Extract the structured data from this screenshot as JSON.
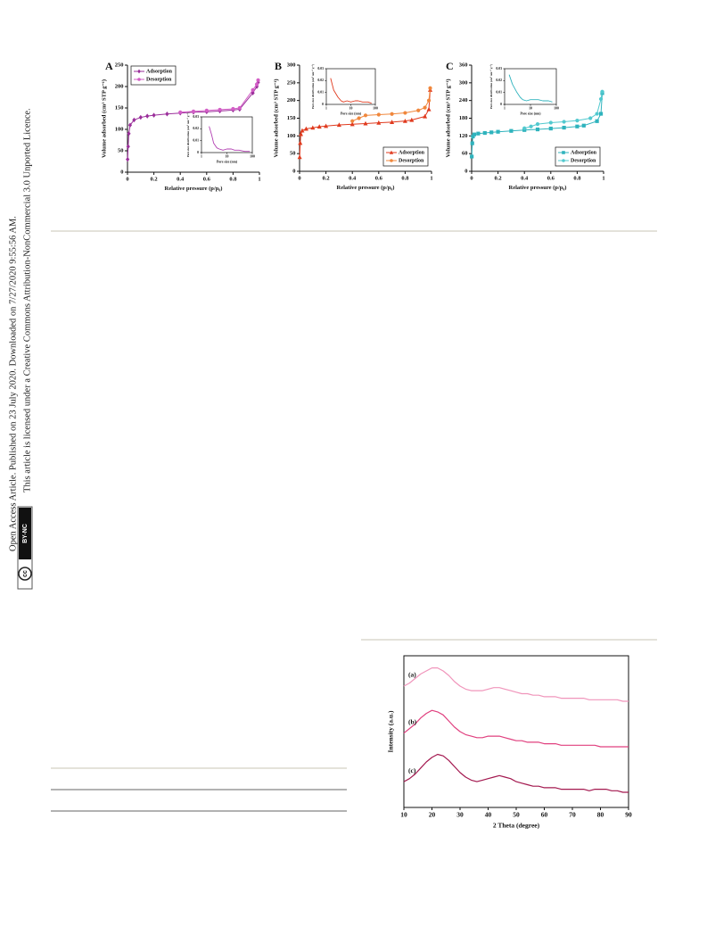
{
  "side_notice": {
    "line1": "Open Access Article. Published on 23 July 2020. Downloaded on 7/27/2020 9:55:56 AM.",
    "line2": "This article is licensed under a Creative Commons Attribution-NonCommercial 3.0 Unported Licence.",
    "badge_cc": "cc",
    "badge_text": "BY-NC"
  },
  "chart_data": [
    {
      "type": "line",
      "panel": "A",
      "xlabel": "Relative pressure  (p/p₀)",
      "ylabel": "Volume adsorbed (cm³ STP g⁻¹)",
      "xlim": [
        0,
        1
      ],
      "xticks": [
        0,
        0.2,
        0.4,
        0.6,
        0.8,
        1
      ],
      "ylim": [
        0,
        250
      ],
      "yticks": [
        0,
        50,
        100,
        150,
        200,
        250
      ],
      "legend": "upper left",
      "series": [
        {
          "name": "Adsorption",
          "color": "#9b2f9b",
          "marker": "diamond",
          "x": [
            0.001,
            0.005,
            0.01,
            0.02,
            0.05,
            0.1,
            0.15,
            0.2,
            0.3,
            0.4,
            0.5,
            0.6,
            0.7,
            0.8,
            0.85,
            0.95,
            0.98,
            0.99
          ],
          "values": [
            30,
            60,
            90,
            110,
            122,
            128,
            131,
            133,
            136,
            138,
            140,
            141,
            143,
            145,
            147,
            185,
            200,
            210
          ]
        },
        {
          "name": "Desorption",
          "color": "#d35ec6",
          "marker": "circle",
          "x": [
            0.99,
            0.98,
            0.95,
            0.85,
            0.8,
            0.7,
            0.6,
            0.5,
            0.4
          ],
          "values": [
            215,
            205,
            192,
            150,
            148,
            146,
            144,
            142,
            140
          ]
        }
      ],
      "inset": {
        "type": "line",
        "xlabel": "Pore size (nm)",
        "ylabel": "Pore size distribution (cm³ nm⁻¹ g⁻¹)",
        "xscale": "log",
        "xlim": [
          1,
          100
        ],
        "xticks": [
          1,
          10,
          100
        ],
        "ylim": [
          0,
          0.03
        ],
        "yticks": [
          0,
          0.01,
          0.02,
          0.03
        ],
        "frame": true,
        "series": [
          {
            "color": "#b23fb2",
            "x": [
              2,
              2.5,
              3,
              4,
              5,
              7,
              10,
              15,
              20,
              30,
              50,
              80
            ],
            "values": [
              0.022,
              0.015,
              0.008,
              0.004,
              0.003,
              0.002,
              0.003,
              0.003,
              0.002,
              0.002,
              0.001,
              0.001
            ]
          }
        ]
      }
    },
    {
      "type": "line",
      "panel": "B",
      "xlabel": "Relative pressure  (p/p₀)",
      "ylabel": "Volume adsorbed (cm³ STP g⁻¹)",
      "xlim": [
        0,
        1
      ],
      "xticks": [
        0,
        0.2,
        0.4,
        0.6,
        0.8,
        1
      ],
      "ylim": [
        0,
        300
      ],
      "yticks": [
        0,
        50,
        100,
        150,
        200,
        250,
        300
      ],
      "legend": "lower right",
      "series": [
        {
          "name": "Adsorption",
          "color": "#e03a1e",
          "marker": "triangle",
          "x": [
            0.001,
            0.005,
            0.01,
            0.02,
            0.05,
            0.1,
            0.15,
            0.2,
            0.3,
            0.4,
            0.5,
            0.6,
            0.7,
            0.8,
            0.85,
            0.95,
            0.98,
            0.99
          ],
          "values": [
            40,
            80,
            105,
            115,
            120,
            123,
            126,
            128,
            131,
            133,
            135,
            137,
            139,
            142,
            145,
            155,
            175,
            230
          ]
        },
        {
          "name": "Desorption",
          "color": "#f0873c",
          "marker": "circle",
          "x": [
            0.99,
            0.98,
            0.95,
            0.9,
            0.8,
            0.7,
            0.6,
            0.5,
            0.45,
            0.4
          ],
          "values": [
            235,
            200,
            180,
            172,
            165,
            162,
            160,
            158,
            150,
            142
          ]
        }
      ],
      "inset": {
        "type": "line",
        "xlabel": "Pore size (nm)",
        "ylabel": "Pore size distribution (cm³ nm⁻¹ g⁻¹)",
        "xscale": "log",
        "xlim": [
          1,
          100
        ],
        "xticks": [
          1,
          10,
          100
        ],
        "ylim": [
          0,
          0.03
        ],
        "yticks": [
          0,
          0.01,
          0.02,
          0.03
        ],
        "frame": true,
        "series": [
          {
            "color": "#e03a1e",
            "x": [
              1.5,
              2,
              3,
              4,
              5,
              7,
              10,
              15,
              20,
              30,
              50,
              70
            ],
            "values": [
              0.022,
              0.012,
              0.006,
              0.003,
              0.002,
              0.003,
              0.002,
              0.003,
              0.003,
              0.002,
              0.002,
              0.001
            ]
          }
        ]
      }
    },
    {
      "type": "line",
      "panel": "C",
      "xlabel": "Relative pressure  (p/p₀)",
      "ylabel": "Volume adsorbed (cm³ STP g⁻¹)",
      "xlim": [
        0,
        1
      ],
      "xticks": [
        0,
        0.2,
        0.4,
        0.6,
        0.8,
        1
      ],
      "ylim": [
        0,
        360
      ],
      "yticks": [
        0,
        60,
        120,
        180,
        240,
        300,
        360
      ],
      "legend": "lower right",
      "series": [
        {
          "name": "Adsorption",
          "color": "#2fb3bd",
          "marker": "square",
          "x": [
            0.001,
            0.005,
            0.01,
            0.02,
            0.05,
            0.1,
            0.15,
            0.2,
            0.3,
            0.4,
            0.5,
            0.6,
            0.7,
            0.8,
            0.85,
            0.95,
            0.98,
            0.99
          ],
          "values": [
            50,
            95,
            118,
            125,
            128,
            130,
            132,
            134,
            137,
            140,
            142,
            145,
            148,
            152,
            155,
            170,
            195,
            265
          ]
        },
        {
          "name": "Desorption",
          "color": "#52c9cf",
          "marker": "circle",
          "x": [
            0.99,
            0.98,
            0.95,
            0.9,
            0.8,
            0.7,
            0.6,
            0.5,
            0.45,
            0.4
          ],
          "values": [
            270,
            245,
            195,
            180,
            172,
            168,
            165,
            160,
            152,
            146
          ]
        }
      ],
      "inset": {
        "type": "line",
        "xlabel": "Pore size (nm)",
        "ylabel": "Pore size distribution (cm³ nm⁻¹ g⁻¹)",
        "xscale": "log",
        "xlim": [
          1,
          100
        ],
        "xticks": [
          1,
          10,
          100
        ],
        "ylim": [
          0,
          0.03
        ],
        "yticks": [
          0,
          0.01,
          0.02,
          0.03
        ],
        "frame": true,
        "series": [
          {
            "color": "#2fb3bd",
            "x": [
              1.5,
              2,
              3,
              4,
              5,
              7,
              10,
              15,
              20,
              30,
              50,
              70
            ],
            "values": [
              0.025,
              0.017,
              0.01,
              0.006,
              0.004,
              0.003,
              0.004,
              0.004,
              0.004,
              0.003,
              0.003,
              0.002
            ]
          }
        ]
      }
    },
    {
      "type": "line",
      "xlabel": "2 Theta (degree)",
      "ylabel": "Intensity (a.u.)",
      "xlim": [
        10,
        90
      ],
      "xticks": [
        10,
        20,
        30,
        40,
        50,
        60,
        70,
        80,
        90
      ],
      "ylim": [
        0,
        100
      ],
      "frame": true,
      "legend": "inline",
      "x": [
        10,
        12,
        14,
        16,
        18,
        20,
        22,
        24,
        26,
        28,
        30,
        32,
        34,
        36,
        38,
        40,
        42,
        44,
        46,
        48,
        50,
        52,
        54,
        56,
        58,
        60,
        62,
        64,
        66,
        68,
        70,
        72,
        74,
        76,
        78,
        80,
        82,
        84,
        86,
        88,
        90
      ],
      "series": [
        {
          "name": "(a)",
          "color": "#f095bb",
          "values": [
            80,
            82,
            85,
            88,
            90,
            92,
            92,
            90,
            87,
            83,
            80,
            78,
            77,
            77,
            77,
            78,
            79,
            79,
            78,
            77,
            76,
            75,
            75,
            74,
            74,
            73,
            73,
            73,
            72,
            72,
            72,
            72,
            72,
            71,
            71,
            71,
            71,
            71,
            71,
            70,
            70
          ]
        },
        {
          "name": "(b)",
          "color": "#e0407f",
          "values": [
            49,
            52,
            55,
            59,
            62,
            64,
            63,
            61,
            57,
            53,
            50,
            48,
            47,
            46,
            46,
            47,
            47,
            47,
            46,
            45,
            44,
            44,
            43,
            43,
            43,
            42,
            42,
            42,
            41,
            41,
            41,
            41,
            41,
            41,
            41,
            40,
            40,
            40,
            40,
            40,
            40
          ]
        },
        {
          "name": "(c)",
          "color": "#a3184f",
          "values": [
            17,
            19,
            22,
            26,
            30,
            33,
            35,
            34,
            31,
            27,
            23,
            20,
            18,
            17,
            18,
            19,
            20,
            21,
            20,
            19,
            17,
            16,
            15,
            14,
            14,
            13,
            13,
            13,
            12,
            12,
            12,
            12,
            12,
            11,
            12,
            12,
            12,
            11,
            11,
            10,
            10
          ]
        }
      ]
    }
  ]
}
